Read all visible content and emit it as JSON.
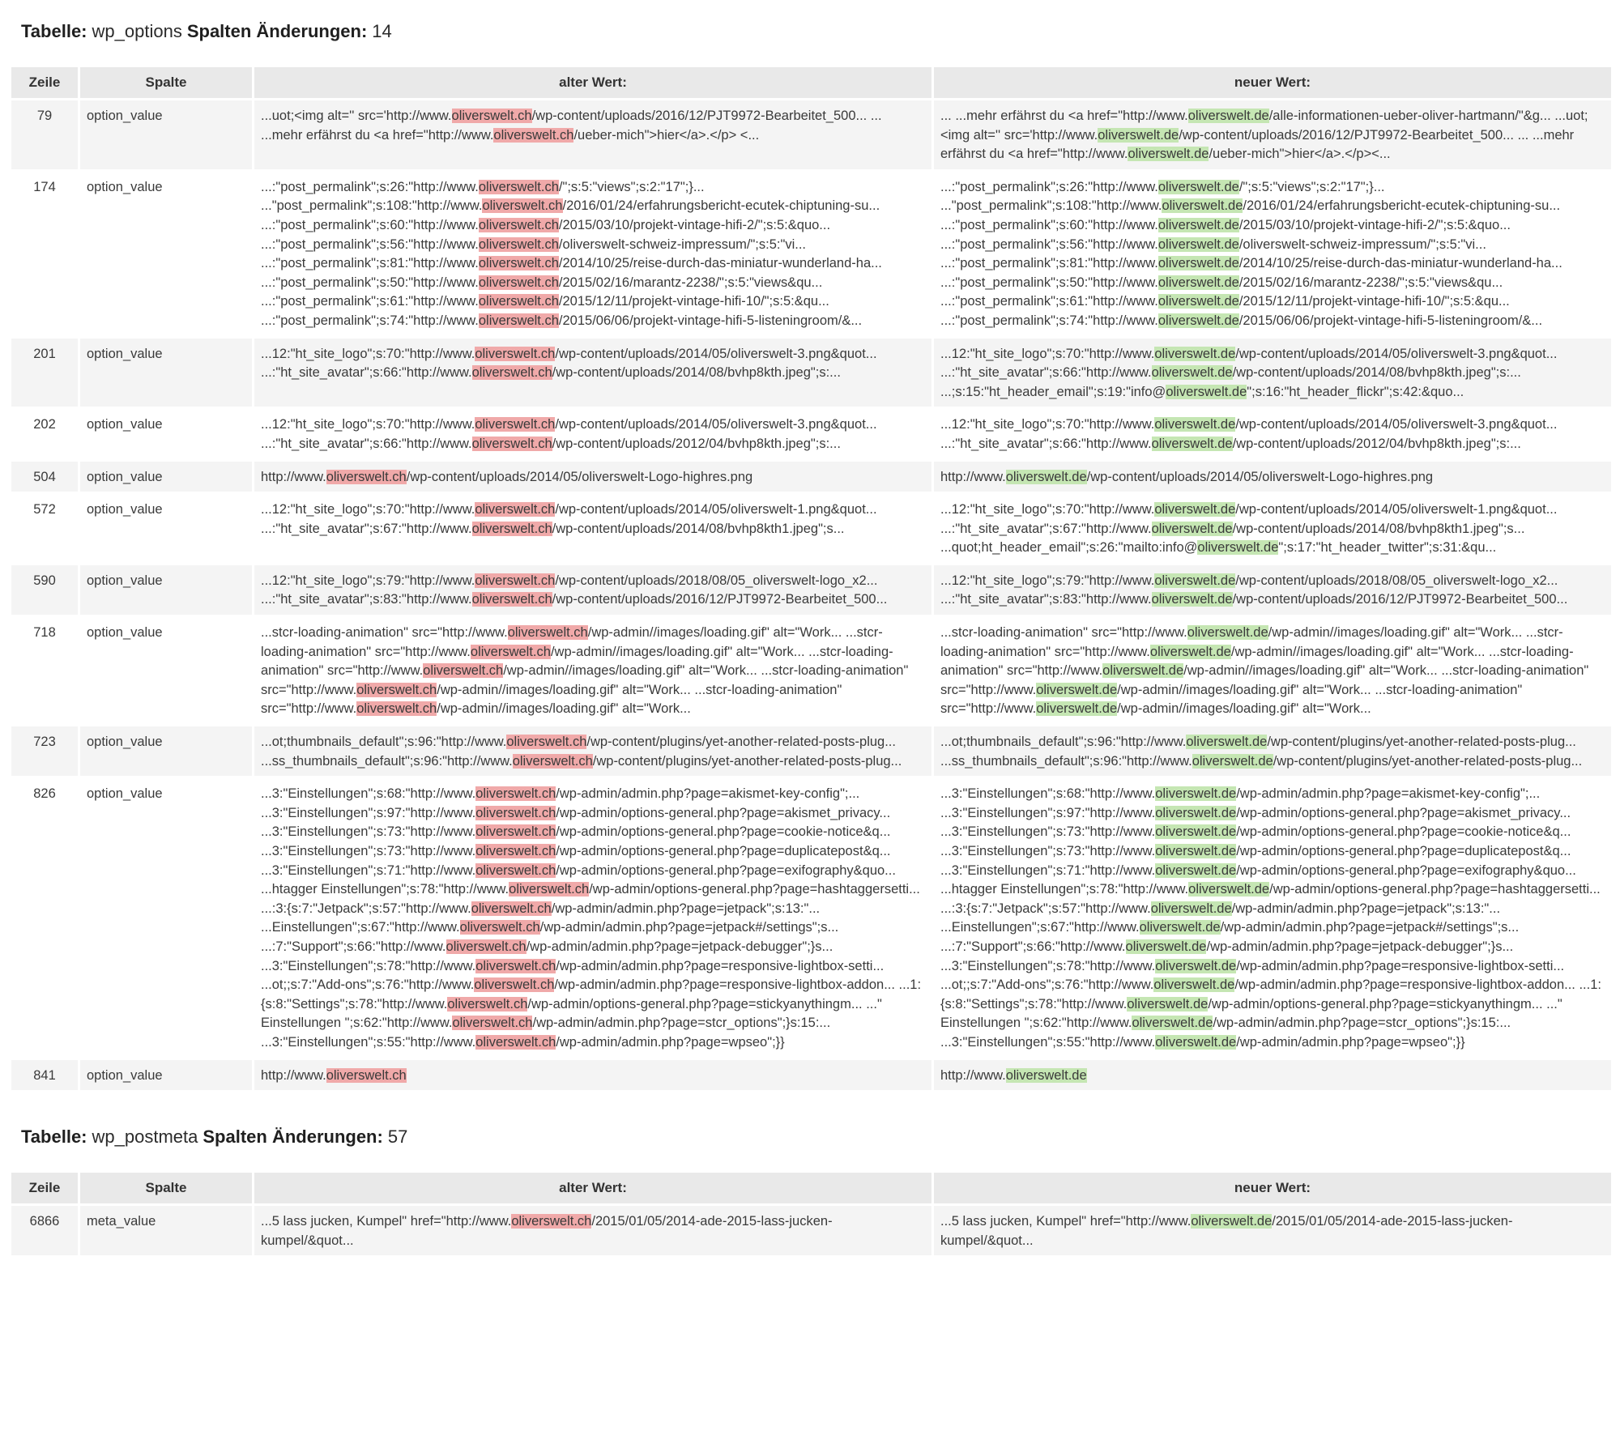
{
  "labels": {
    "table_prefix": "Tabelle:",
    "changes_prefix": "Spalten Änderungen:",
    "col_row": "Zeile",
    "col_column": "Spalte",
    "col_old": "alter Wert:",
    "col_new": "neuer Wert:"
  },
  "colors": {
    "old_highlight": "#f0a9a9",
    "new_highlight": "#c5e6b3",
    "header_bg": "#e9e9e9",
    "stripe_bg": "#f4f4f4"
  },
  "tables": [
    {
      "name": "wp_options",
      "changes": "14",
      "rows": [
        {
          "row": "79",
          "column": "option_value",
          "old": [
            "...uot;<img alt='' src='http://www.",
            {
              "h": "oliverswelt.ch"
            },
            "/wp-content/uploads/2016/12/PJT9972-Bearbeitet_500... ... ...mehr erfährst du <a href=\"http://www.",
            {
              "h": "oliverswelt.ch"
            },
            "/ueber-mich\">hier</a>.</p> <..."
          ],
          "new": [
            "... ...mehr erfährst du <a href=\"http://www.",
            {
              "h": "oliverswelt.de"
            },
            "/alle-informationen-ueber-oliver-hartmann/\"&g... ...uot;<img alt='' src='http://www.",
            {
              "h": "oliverswelt.de"
            },
            "/wp-content/uploads/2016/12/PJT9972-Bearbeitet_500... ... ...mehr erfährst du <a href=\"http://www.",
            {
              "h": "oliverswelt.de"
            },
            "/ueber-mich\">hier</a>.</p><..."
          ]
        },
        {
          "row": "174",
          "column": "option_value",
          "old": [
            "...:\"post_permalink\";s:26:\"http://www.",
            {
              "h": "oliverswelt.ch"
            },
            "/\";s:5:\"views\";s:2:\"17\";}... ...\"post_permalink\";s:108:\"http://www.",
            {
              "h": "oliverswelt.ch"
            },
            "/2016/01/24/erfahrungsbericht-ecutek-chiptuning-su... ...:\"post_permalink\";s:60:\"http://www.",
            {
              "h": "oliverswelt.ch"
            },
            "/2015/03/10/projekt-vintage-hifi-2/\";s:5:&quo... ...:\"post_permalink\";s:56:\"http://www.",
            {
              "h": "oliverswelt.ch"
            },
            "/oliverswelt-schweiz-impressum/\";s:5:\"vi... ...:\"post_permalink\";s:81:\"http://www.",
            {
              "h": "oliverswelt.ch"
            },
            "/2014/10/25/reise-durch-das-miniatur-wunderland-ha... ...:\"post_permalink\";s:50:\"http://www.",
            {
              "h": "oliverswelt.ch"
            },
            "/2015/02/16/marantz-2238/\";s:5:\"views&qu... ...:\"post_permalink\";s:61:\"http://www.",
            {
              "h": "oliverswelt.ch"
            },
            "/2015/12/11/projekt-vintage-hifi-10/\";s:5:&qu... ...:\"post_permalink\";s:74:\"http://www.",
            {
              "h": "oliverswelt.ch"
            },
            "/2015/06/06/projekt-vintage-hifi-5-listeningroom/&..."
          ],
          "new": [
            "...:\"post_permalink\";s:26:\"http://www.",
            {
              "h": "oliverswelt.de"
            },
            "/\";s:5:\"views\";s:2:\"17\";}... ...\"post_permalink\";s:108:\"http://www.",
            {
              "h": "oliverswelt.de"
            },
            "/2016/01/24/erfahrungsbericht-ecutek-chiptuning-su... ...:\"post_permalink\";s:60:\"http://www.",
            {
              "h": "oliverswelt.de"
            },
            "/2015/03/10/projekt-vintage-hifi-2/\";s:5:&quo... ...:\"post_permalink\";s:56:\"http://www.",
            {
              "h": "oliverswelt.de"
            },
            "/oliverswelt-schweiz-impressum/\";s:5:\"vi... ...:\"post_permalink\";s:81:\"http://www.",
            {
              "h": "oliverswelt.de"
            },
            "/2014/10/25/reise-durch-das-miniatur-wunderland-ha... ...:\"post_permalink\";s:50:\"http://www.",
            {
              "h": "oliverswelt.de"
            },
            "/2015/02/16/marantz-2238/\";s:5:\"views&qu... ...:\"post_permalink\";s:61:\"http://www.",
            {
              "h": "oliverswelt.de"
            },
            "/2015/12/11/projekt-vintage-hifi-10/\";s:5:&qu... ...:\"post_permalink\";s:74:\"http://www.",
            {
              "h": "oliverswelt.de"
            },
            "/2015/06/06/projekt-vintage-hifi-5-listeningroom/&..."
          ]
        },
        {
          "row": "201",
          "column": "option_value",
          "old": [
            "...12:\"ht_site_logo\";s:70:\"http://www.",
            {
              "h": "oliverswelt.ch"
            },
            "/wp-content/uploads/2014/05/oliverswelt-3.png&quot... ...:\"ht_site_avatar\";s:66:\"http://www.",
            {
              "h": "oliverswelt.ch"
            },
            "/wp-content/uploads/2014/08/bvhp8kth.jpeg\";s:..."
          ],
          "new": [
            "...12:\"ht_site_logo\";s:70:\"http://www.",
            {
              "h": "oliverswelt.de"
            },
            "/wp-content/uploads/2014/05/oliverswelt-3.png&quot... ...:\"ht_site_avatar\";s:66:\"http://www.",
            {
              "h": "oliverswelt.de"
            },
            "/wp-content/uploads/2014/08/bvhp8kth.jpeg\";s:... ...;s:15:\"ht_header_email\";s:19:\"info@",
            {
              "h": "oliverswelt.de"
            },
            "\";s:16:\"ht_header_flickr\";s:42:&quo..."
          ]
        },
        {
          "row": "202",
          "column": "option_value",
          "old": [
            "...12:\"ht_site_logo\";s:70:\"http://www.",
            {
              "h": "oliverswelt.ch"
            },
            "/wp-content/uploads/2014/05/oliverswelt-3.png&quot... ...:\"ht_site_avatar\";s:66:\"http://www.",
            {
              "h": "oliverswelt.ch"
            },
            "/wp-content/uploads/2012/04/bvhp8kth.jpeg\";s:..."
          ],
          "new": [
            "...12:\"ht_site_logo\";s:70:\"http://www.",
            {
              "h": "oliverswelt.de"
            },
            "/wp-content/uploads/2014/05/oliverswelt-3.png&quot... ...:\"ht_site_avatar\";s:66:\"http://www.",
            {
              "h": "oliverswelt.de"
            },
            "/wp-content/uploads/2012/04/bvhp8kth.jpeg\";s:..."
          ]
        },
        {
          "row": "504",
          "column": "option_value",
          "old": [
            "http://www.",
            {
              "h": "oliverswelt.ch"
            },
            "/wp-content/uploads/2014/05/oliverswelt-Logo-highres.png"
          ],
          "new": [
            "http://www.",
            {
              "h": "oliverswelt.de"
            },
            "/wp-content/uploads/2014/05/oliverswelt-Logo-highres.png"
          ]
        },
        {
          "row": "572",
          "column": "option_value",
          "old": [
            "...12:\"ht_site_logo\";s:70:\"http://www.",
            {
              "h": "oliverswelt.ch"
            },
            "/wp-content/uploads/2014/05/oliverswelt-1.png&quot... ...:\"ht_site_avatar\";s:67:\"http://www.",
            {
              "h": "oliverswelt.ch"
            },
            "/wp-content/uploads/2014/08/bvhp8kth1.jpeg\";s..."
          ],
          "new": [
            "...12:\"ht_site_logo\";s:70:\"http://www.",
            {
              "h": "oliverswelt.de"
            },
            "/wp-content/uploads/2014/05/oliverswelt-1.png&quot... ...:\"ht_site_avatar\";s:67:\"http://www.",
            {
              "h": "oliverswelt.de"
            },
            "/wp-content/uploads/2014/08/bvhp8kth1.jpeg\";s... ...quot;ht_header_email\";s:26:\"mailto:info@",
            {
              "h": "oliverswelt.de"
            },
            "\";s:17:\"ht_header_twitter\";s:31:&qu..."
          ]
        },
        {
          "row": "590",
          "column": "option_value",
          "old": [
            "...12:\"ht_site_logo\";s:79:\"http://www.",
            {
              "h": "oliverswelt.ch"
            },
            "/wp-content/uploads/2018/08/05_oliverswelt-logo_x2... ...:\"ht_site_avatar\";s:83:\"http://www.",
            {
              "h": "oliverswelt.ch"
            },
            "/wp-content/uploads/2016/12/PJT9972-Bearbeitet_500..."
          ],
          "new": [
            "...12:\"ht_site_logo\";s:79:\"http://www.",
            {
              "h": "oliverswelt.de"
            },
            "/wp-content/uploads/2018/08/05_oliverswelt-logo_x2... ...:\"ht_site_avatar\";s:83:\"http://www.",
            {
              "h": "oliverswelt.de"
            },
            "/wp-content/uploads/2016/12/PJT9972-Bearbeitet_500..."
          ]
        },
        {
          "row": "718",
          "column": "option_value",
          "old": [
            "...stcr-loading-animation\" src=\"http://www.",
            {
              "h": "oliverswelt.ch"
            },
            "/wp-admin//images/loading.gif\" alt=\"Work... ...stcr-loading-animation\" src=\"http://www.",
            {
              "h": "oliverswelt.ch"
            },
            "/wp-admin//images/loading.gif\" alt=\"Work... ...stcr-loading-animation\" src=\"http://www.",
            {
              "h": "oliverswelt.ch"
            },
            "/wp-admin//images/loading.gif\" alt=\"Work... ...stcr-loading-animation\" src=\"http://www.",
            {
              "h": "oliverswelt.ch"
            },
            "/wp-admin//images/loading.gif\" alt=\"Work... ...stcr-loading-animation\" src=\"http://www.",
            {
              "h": "oliverswelt.ch"
            },
            "/wp-admin//images/loading.gif\" alt=\"Work..."
          ],
          "new": [
            "...stcr-loading-animation\" src=\"http://www.",
            {
              "h": "oliverswelt.de"
            },
            "/wp-admin//images/loading.gif\" alt=\"Work... ...stcr-loading-animation\" src=\"http://www.",
            {
              "h": "oliverswelt.de"
            },
            "/wp-admin//images/loading.gif\" alt=\"Work... ...stcr-loading-animation\" src=\"http://www.",
            {
              "h": "oliverswelt.de"
            },
            "/wp-admin//images/loading.gif\" alt=\"Work... ...stcr-loading-animation\" src=\"http://www.",
            {
              "h": "oliverswelt.de"
            },
            "/wp-admin//images/loading.gif\" alt=\"Work... ...stcr-loading-animation\" src=\"http://www.",
            {
              "h": "oliverswelt.de"
            },
            "/wp-admin//images/loading.gif\" alt=\"Work..."
          ]
        },
        {
          "row": "723",
          "column": "option_value",
          "old": [
            "...ot;thumbnails_default\";s:96:\"http://www.",
            {
              "h": "oliverswelt.ch"
            },
            "/wp-content/plugins/yet-another-related-posts-plug... ...ss_thumbnails_default\";s:96:\"http://www.",
            {
              "h": "oliverswelt.ch"
            },
            "/wp-content/plugins/yet-another-related-posts-plug..."
          ],
          "new": [
            "...ot;thumbnails_default\";s:96:\"http://www.",
            {
              "h": "oliverswelt.de"
            },
            "/wp-content/plugins/yet-another-related-posts-plug... ...ss_thumbnails_default\";s:96:\"http://www.",
            {
              "h": "oliverswelt.de"
            },
            "/wp-content/plugins/yet-another-related-posts-plug..."
          ]
        },
        {
          "row": "826",
          "column": "option_value",
          "old": [
            "...3:\"Einstellungen\";s:68:\"http://www.",
            {
              "h": "oliverswelt.ch"
            },
            "/wp-admin/admin.php?page=akismet-key-config\";... ...3:\"Einstellungen\";s:97:\"http://www.",
            {
              "h": "oliverswelt.ch"
            },
            "/wp-admin/options-general.php?page=akismet_privacy... ...3:\"Einstellungen\";s:73:\"http://www.",
            {
              "h": "oliverswelt.ch"
            },
            "/wp-admin/options-general.php?page=cookie-notice&q... ...3:\"Einstellungen\";s:73:\"http://www.",
            {
              "h": "oliverswelt.ch"
            },
            "/wp-admin/options-general.php?page=duplicatepost&q... ...3:\"Einstellungen\";s:71:\"http://www.",
            {
              "h": "oliverswelt.ch"
            },
            "/wp-admin/options-general.php?page=exifography&quo... ...htagger Einstellungen\";s:78:\"http://www.",
            {
              "h": "oliverswelt.ch"
            },
            "/wp-admin/options-general.php?page=hashtaggersetti... ...:3:{s:7:\"Jetpack\";s:57:\"http://www.",
            {
              "h": "oliverswelt.ch"
            },
            "/wp-admin/admin.php?page=jetpack\";s:13:\"... ...Einstellungen\";s:67:\"http://www.",
            {
              "h": "oliverswelt.ch"
            },
            "/wp-admin/admin.php?page=jetpack#/settings\";s... ...:7:\"Support\";s:66:\"http://www.",
            {
              "h": "oliverswelt.ch"
            },
            "/wp-admin/admin.php?page=jetpack-debugger\";}s... ...3:\"Einstellungen\";s:78:\"http://www.",
            {
              "h": "oliverswelt.ch"
            },
            "/wp-admin/admin.php?page=responsive-lightbox-setti... ...ot;;s:7:\"Add-ons\";s:76:\"http://www.",
            {
              "h": "oliverswelt.ch"
            },
            "/wp-admin/admin.php?page=responsive-lightbox-addon... ...1:{s:8:\"Settings\";s:78:\"http://www.",
            {
              "h": "oliverswelt.ch"
            },
            "/wp-admin/options-general.php?page=stickyanythingm... ...\" Einstellungen \";s:62:\"http://www.",
            {
              "h": "oliverswelt.ch"
            },
            "/wp-admin/admin.php?page=stcr_options\";}s:15:... ...3:\"Einstellungen\";s:55:\"http://www.",
            {
              "h": "oliverswelt.ch"
            },
            "/wp-admin/admin.php?page=wpseo\";}}"
          ],
          "new": [
            "...3:\"Einstellungen\";s:68:\"http://www.",
            {
              "h": "oliverswelt.de"
            },
            "/wp-admin/admin.php?page=akismet-key-config\";... ...3:\"Einstellungen\";s:97:\"http://www.",
            {
              "h": "oliverswelt.de"
            },
            "/wp-admin/options-general.php?page=akismet_privacy... ...3:\"Einstellungen\";s:73:\"http://www.",
            {
              "h": "oliverswelt.de"
            },
            "/wp-admin/options-general.php?page=cookie-notice&q... ...3:\"Einstellungen\";s:73:\"http://www.",
            {
              "h": "oliverswelt.de"
            },
            "/wp-admin/options-general.php?page=duplicatepost&q... ...3:\"Einstellungen\";s:71:\"http://www.",
            {
              "h": "oliverswelt.de"
            },
            "/wp-admin/options-general.php?page=exifography&quo... ...htagger Einstellungen\";s:78:\"http://www.",
            {
              "h": "oliverswelt.de"
            },
            "/wp-admin/options-general.php?page=hashtaggersetti... ...:3:{s:7:\"Jetpack\";s:57:\"http://www.",
            {
              "h": "oliverswelt.de"
            },
            "/wp-admin/admin.php?page=jetpack\";s:13:\"... ...Einstellungen\";s:67:\"http://www.",
            {
              "h": "oliverswelt.de"
            },
            "/wp-admin/admin.php?page=jetpack#/settings\";s... ...:7:\"Support\";s:66:\"http://www.",
            {
              "h": "oliverswelt.de"
            },
            "/wp-admin/admin.php?page=jetpack-debugger\";}s... ...3:\"Einstellungen\";s:78:\"http://www.",
            {
              "h": "oliverswelt.de"
            },
            "/wp-admin/admin.php?page=responsive-lightbox-setti... ...ot;;s:7:\"Add-ons\";s:76:\"http://www.",
            {
              "h": "oliverswelt.de"
            },
            "/wp-admin/admin.php?page=responsive-lightbox-addon... ...1:{s:8:\"Settings\";s:78:\"http://www.",
            {
              "h": "oliverswelt.de"
            },
            "/wp-admin/options-general.php?page=stickyanythingm... ...\" Einstellungen \";s:62:\"http://www.",
            {
              "h": "oliverswelt.de"
            },
            "/wp-admin/admin.php?page=stcr_options\";}s:15:... ...3:\"Einstellungen\";s:55:\"http://www.",
            {
              "h": "oliverswelt.de"
            },
            "/wp-admin/admin.php?page=wpseo\";}}"
          ]
        },
        {
          "row": "841",
          "column": "option_value",
          "old": [
            "http://www.",
            {
              "h": "oliverswelt.ch"
            }
          ],
          "new": [
            "http://www.",
            {
              "h": "oliverswelt.de"
            }
          ]
        }
      ]
    },
    {
      "name": "wp_postmeta",
      "changes": "57",
      "rows": [
        {
          "row": "6866",
          "column": "meta_value",
          "old": [
            "...5 lass jucken, Kumpel\" href=\"http://www.",
            {
              "h": "oliverswelt.ch"
            },
            "/2015/01/05/2014-ade-2015-lass-jucken-kumpel/&quot..."
          ],
          "new": [
            "...5 lass jucken, Kumpel\" href=\"http://www.",
            {
              "h": "oliverswelt.de"
            },
            "/2015/01/05/2014-ade-2015-lass-jucken-kumpel/&quot..."
          ]
        }
      ]
    }
  ]
}
